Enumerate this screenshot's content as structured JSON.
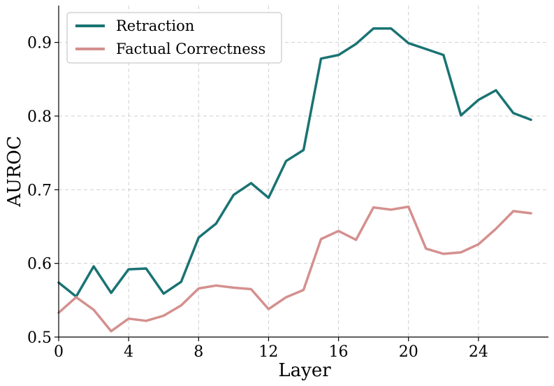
{
  "chart_data": {
    "type": "line",
    "title": "",
    "xlabel": "Layer",
    "ylabel": "AUROC",
    "xlim": [
      0,
      28
    ],
    "ylim": [
      0.5,
      0.95
    ],
    "xticks": [
      0,
      4,
      8,
      12,
      16,
      20,
      24
    ],
    "yticks": [
      0.5,
      0.6,
      0.7,
      0.8,
      0.9
    ],
    "ytick_labels": [
      "0.5",
      "0.6",
      "0.7",
      "0.8",
      "0.9"
    ],
    "grid": true,
    "legend_position": "top-left",
    "x": [
      0,
      1,
      2,
      3,
      4,
      5,
      6,
      7,
      8,
      9,
      10,
      11,
      12,
      13,
      14,
      15,
      16,
      17,
      18,
      19,
      20,
      21,
      22,
      23,
      24,
      25,
      26,
      27
    ],
    "series": [
      {
        "name": "Retraction",
        "color": "#1a7373",
        "values": [
          0.574,
          0.555,
          0.596,
          0.56,
          0.592,
          0.593,
          0.559,
          0.575,
          0.635,
          0.654,
          0.693,
          0.709,
          0.689,
          0.739,
          0.754,
          0.878,
          0.883,
          0.898,
          0.919,
          0.919,
          0.899,
          0.891,
          0.883,
          0.801,
          0.822,
          0.835,
          0.804,
          0.795
        ]
      },
      {
        "name": "Factual Correctness",
        "color": "#d4908e",
        "values": [
          0.533,
          0.554,
          0.537,
          0.508,
          0.525,
          0.522,
          0.529,
          0.543,
          0.566,
          0.57,
          0.567,
          0.565,
          0.538,
          0.554,
          0.564,
          0.633,
          0.644,
          0.632,
          0.676,
          0.673,
          0.677,
          0.62,
          0.613,
          0.615,
          0.626,
          0.647,
          0.671,
          0.668
        ]
      }
    ]
  }
}
